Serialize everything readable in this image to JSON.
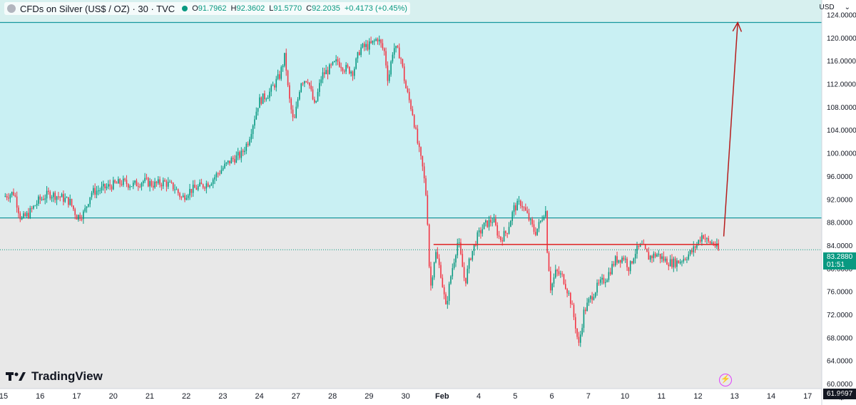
{
  "header": {
    "title": "CFDs on Silver (US$ / OZ) · 30 · TVC",
    "open_label": "O",
    "open": "91.7962",
    "high_label": "H",
    "high": "92.3602",
    "low_label": "L",
    "low": "91.5770",
    "close_label": "C",
    "close": "92.2035",
    "change": "+0.4173 (+0.45%)"
  },
  "currency": "USD",
  "currency_caret": "⌄",
  "logo_text": "TradingView",
  "last_price_label": {
    "price": "83.2880",
    "countdown": "01:51"
  },
  "low_price_label": "61.9697",
  "colors": {
    "up": "#089981",
    "down": "#f23645",
    "zone_upper": "#d7f0ef",
    "zone_mid": "#c9f0f3",
    "zone_lower": "#e8e8e8",
    "zone_line": "#17989e",
    "arrow": "#b71c1c",
    "hline": "#e03131"
  },
  "chart_data": {
    "type": "candlestick",
    "title": "CFDs on Silver (US$ / OZ) · 30 · TVC",
    "y_axis": {
      "ticks": [
        60,
        64,
        68,
        72,
        76,
        80,
        84,
        88,
        92,
        96,
        100,
        104,
        108,
        112,
        116,
        120,
        124
      ],
      "tick_labels": [
        "60.0000",
        "64.0000",
        "68.0000",
        "72.0000",
        "76.0000",
        "80.0000",
        "84.0000",
        "88.0000",
        "92.0000",
        "96.0000",
        "100.0000",
        "104.0000",
        "108.0000",
        "112.0000",
        "116.0000",
        "120.0000",
        "124.0000"
      ],
      "range": [
        59.2,
        126.6
      ]
    },
    "x_axis": {
      "tick_labels": [
        "15",
        "16",
        "17",
        "20",
        "21",
        "22",
        "23",
        "24",
        "27",
        "28",
        "29",
        "30",
        "Feb",
        "4",
        "5",
        "6",
        "7",
        "10",
        "11",
        "12",
        "13",
        "14",
        "17"
      ],
      "range": [
        0,
        23.2
      ]
    },
    "path_close": [
      [
        0,
        92.5
      ],
      [
        0.3,
        93.2
      ],
      [
        0.5,
        88.5
      ],
      [
        0.7,
        89.4
      ],
      [
        1.0,
        91.8
      ],
      [
        1.3,
        93.0
      ],
      [
        1.6,
        92.5
      ],
      [
        1.9,
        91.6
      ],
      [
        2.1,
        89.0
      ],
      [
        2.3,
        89.6
      ],
      [
        2.5,
        93.2
      ],
      [
        2.8,
        93.8
      ],
      [
        3.1,
        94.5
      ],
      [
        3.4,
        95.0
      ],
      [
        3.7,
        94.5
      ],
      [
        4.0,
        95.2
      ],
      [
        4.3,
        94.6
      ],
      [
        4.6,
        95.0
      ],
      [
        4.9,
        94.0
      ],
      [
        5.1,
        92.2
      ],
      [
        5.3,
        93.5
      ],
      [
        5.6,
        94.2
      ],
      [
        5.9,
        95.0
      ],
      [
        6.2,
        97.0
      ],
      [
        6.5,
        98.8
      ],
      [
        6.8,
        99.8
      ],
      [
        7.0,
        102.2
      ],
      [
        7.3,
        109.0
      ],
      [
        7.6,
        110.5
      ],
      [
        7.9,
        113.5
      ],
      [
        8.05,
        117.0
      ],
      [
        8.15,
        110.2
      ],
      [
        8.3,
        105.0
      ],
      [
        8.5,
        112.5
      ],
      [
        8.7,
        113.0
      ],
      [
        8.9,
        108.0
      ],
      [
        9.1,
        113.5
      ],
      [
        9.3,
        114.5
      ],
      [
        9.55,
        116.0
      ],
      [
        9.75,
        114.8
      ],
      [
        10.0,
        114.2
      ],
      [
        10.2,
        118.2
      ],
      [
        10.5,
        118.8
      ],
      [
        10.7,
        120.0
      ],
      [
        10.9,
        117.5
      ],
      [
        11.0,
        112.5
      ],
      [
        11.15,
        118.5
      ],
      [
        11.35,
        117.0
      ],
      [
        11.5,
        111.5
      ],
      [
        11.7,
        107.0
      ],
      [
        11.85,
        101.5
      ],
      [
        12.0,
        97.0
      ],
      [
        12.1,
        92.0
      ],
      [
        12.15,
        85.2
      ],
      [
        12.2,
        76.0
      ],
      [
        12.35,
        83.0
      ],
      [
        12.5,
        79.5
      ],
      [
        12.65,
        73.2
      ],
      [
        12.8,
        79.0
      ],
      [
        13.0,
        85.0
      ],
      [
        13.2,
        77.5
      ],
      [
        13.35,
        82.0
      ],
      [
        13.55,
        85.5
      ],
      [
        13.75,
        87.5
      ],
      [
        14.0,
        88.5
      ],
      [
        14.2,
        85.0
      ],
      [
        14.4,
        86.5
      ],
      [
        14.6,
        90.5
      ],
      [
        14.8,
        91.5
      ],
      [
        15.0,
        89.0
      ],
      [
        15.2,
        86.2
      ],
      [
        15.35,
        88.0
      ],
      [
        15.5,
        90.5
      ],
      [
        15.55,
        83.5
      ],
      [
        15.65,
        76.5
      ],
      [
        15.8,
        79.5
      ],
      [
        16.0,
        78.5
      ],
      [
        16.2,
        75.0
      ],
      [
        16.35,
        70.5
      ],
      [
        16.45,
        66.5
      ],
      [
        16.6,
        72.5
      ],
      [
        16.8,
        75.0
      ],
      [
        17.0,
        77.0
      ],
      [
        17.25,
        78.5
      ],
      [
        17.5,
        81.5
      ],
      [
        17.75,
        82.0
      ],
      [
        17.9,
        80.0
      ],
      [
        18.05,
        82.8
      ],
      [
        18.25,
        84.0
      ],
      [
        18.45,
        82.0
      ],
      [
        18.7,
        82.5
      ],
      [
        18.9,
        81.5
      ],
      [
        19.1,
        81.0
      ],
      [
        19.3,
        81.2
      ],
      [
        19.5,
        82.0
      ],
      [
        19.7,
        83.0
      ],
      [
        19.85,
        84.5
      ],
      [
        20.0,
        86.0
      ],
      [
        20.15,
        84.5
      ],
      [
        20.3,
        84.5
      ],
      [
        20.45,
        83.2
      ]
    ],
    "zones": [
      {
        "from": 122.7,
        "to": 126.6,
        "color": "upper"
      },
      {
        "from": 88.8,
        "to": 122.7,
        "color": "mid"
      },
      {
        "from": 59.2,
        "to": 88.8,
        "color": "lower"
      }
    ],
    "zone_lines": [
      122.7,
      88.8
    ],
    "horizontal_line": {
      "value": 84.2,
      "from_x": 12.3,
      "to_x": 20.45
    },
    "arrow": {
      "from": [
        20.6,
        85.6
      ],
      "to": [
        21.0,
        122.7
      ]
    },
    "last_price": 83.288
  }
}
